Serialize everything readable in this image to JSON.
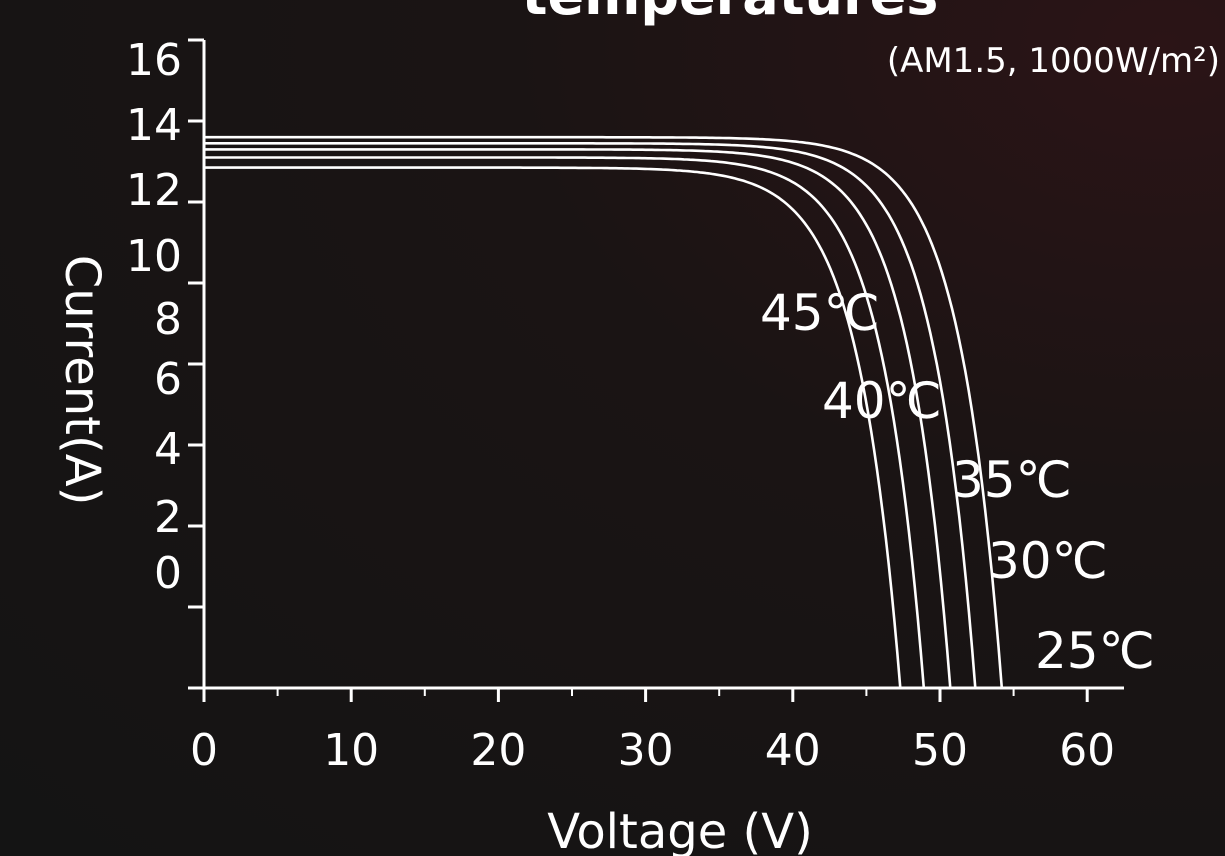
{
  "chart_data": {
    "type": "line",
    "title": "temperatures",
    "subtitle": "(AM1.5, 1000W/m²)",
    "xlabel": "Voltage (V)",
    "ylabel": "Current(A)",
    "xlim": [
      0,
      62
    ],
    "x_ticks": [
      "0",
      "10",
      "20",
      "30",
      "40",
      "50",
      "60"
    ],
    "y_tick_labels": [
      "16",
      "14",
      "12",
      "10",
      "8",
      "6",
      "4",
      "2",
      "0"
    ],
    "grid": false,
    "line_color": "#ffffff",
    "background_color": "#141414",
    "series": [
      {
        "name": "25℃",
        "isc": 13.6,
        "voc": 54.2
      },
      {
        "name": "30℃",
        "isc": 13.45,
        "voc": 52.4
      },
      {
        "name": "35℃",
        "isc": 13.3,
        "voc": 50.7
      },
      {
        "name": "40℃",
        "isc": 13.1,
        "voc": 48.9
      },
      {
        "name": "45℃",
        "isc": 12.85,
        "voc": 47.3
      }
    ]
  }
}
